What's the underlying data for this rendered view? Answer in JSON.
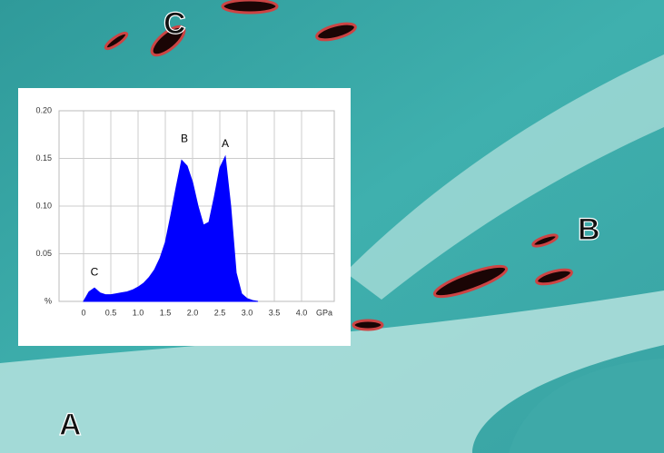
{
  "chart_data": {
    "type": "area",
    "x": [
      0,
      0.1,
      0.2,
      0.3,
      0.4,
      0.5,
      0.6,
      0.7,
      0.8,
      0.9,
      1.0,
      1.1,
      1.2,
      1.3,
      1.4,
      1.5,
      1.6,
      1.7,
      1.8,
      1.9,
      2.0,
      2.1,
      2.2,
      2.3,
      2.4,
      2.5,
      2.6,
      2.7,
      2.8,
      2.9,
      3.0,
      3.1,
      3.2
    ],
    "series": [
      {
        "color": "#0000ff",
        "values": [
          0,
          0.01,
          0.014,
          0.009,
          0.007,
          0.007,
          0.008,
          0.009,
          0.01,
          0.012,
          0.015,
          0.019,
          0.025,
          0.033,
          0.045,
          0.062,
          0.09,
          0.12,
          0.148,
          0.142,
          0.125,
          0.1,
          0.08,
          0.083,
          0.11,
          0.14,
          0.152,
          0.1,
          0.03,
          0.008,
          0.003,
          0.001,
          0
        ]
      }
    ],
    "xlim": [
      -0.45,
      4.6
    ],
    "xticks": [
      0,
      0.5,
      {
        "value": 1,
        "label": "1.0"
      },
      1.5,
      {
        "value": 2,
        "label": "2.0"
      },
      2.5,
      {
        "value": 3,
        "label": "3.0"
      },
      3.5,
      {
        "value": 4,
        "label": "4.0"
      }
    ],
    "x_unit": "GPa",
    "ylim": [
      0,
      0.2
    ],
    "yticks": [
      {
        "value": 0,
        "label": "%"
      },
      0.05,
      {
        "value": 0.1,
        "label": "0.10"
      },
      0.15,
      {
        "value": 0.2,
        "label": "0.20"
      }
    ],
    "grid": true,
    "annotations": [
      {
        "text": "C",
        "x": 0.2,
        "y": 0.03
      },
      {
        "text": "B",
        "x": 1.85,
        "y": 0.17
      },
      {
        "text": "A",
        "x": 2.6,
        "y": 0.165
      }
    ]
  },
  "image_labels": [
    "A",
    "B",
    "C"
  ]
}
